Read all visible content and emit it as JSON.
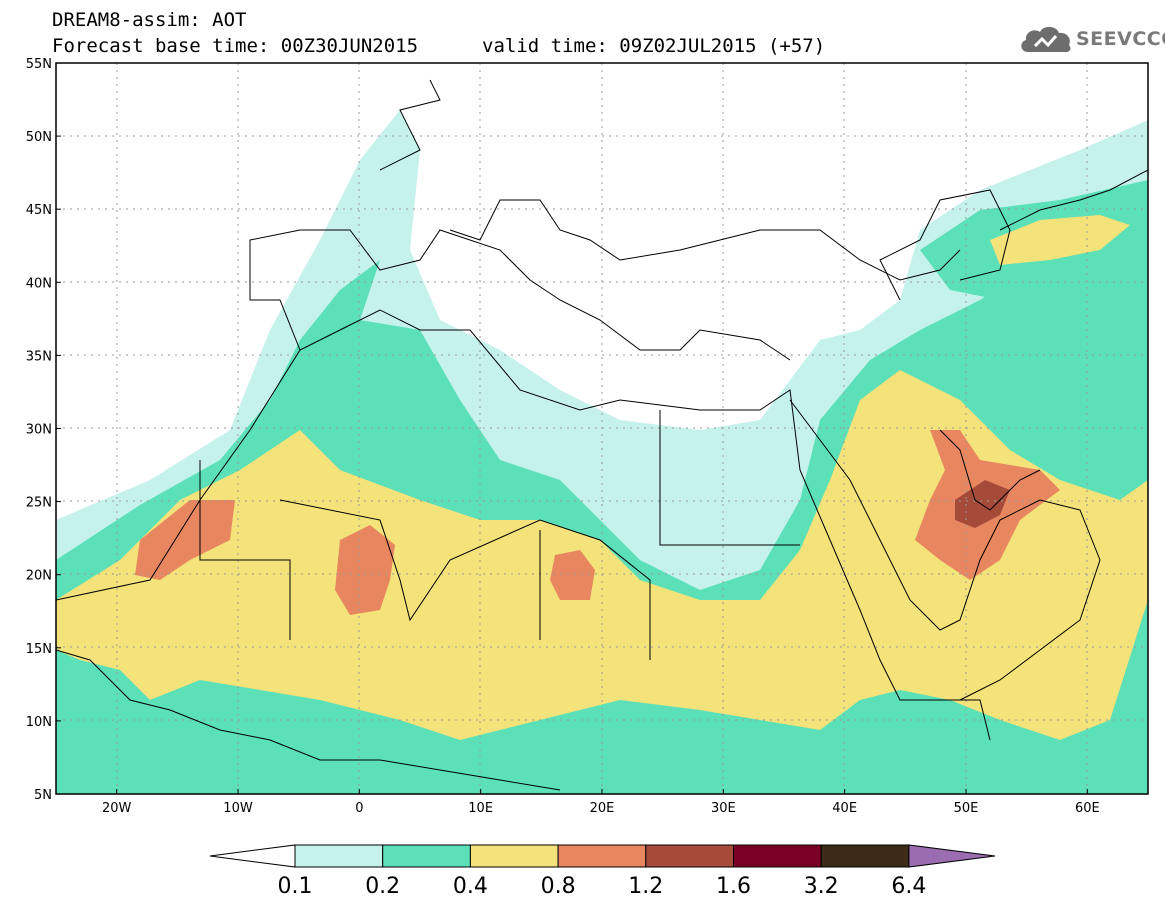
{
  "header": {
    "title_line1": "DREAM8-assim: AOT",
    "base_time": "Forecast base time: 00Z30JUN2015",
    "valid_time": "valid time: 09Z02JUL2015 (+57)"
  },
  "logo": {
    "text": "SEEVCCC",
    "icon": "cloud-logo-icon"
  },
  "map": {
    "lon_range": [
      -25,
      65
    ],
    "lat_range": [
      5,
      55
    ],
    "lat_ticks": [
      "5N",
      "10N",
      "15N",
      "20N",
      "25N",
      "30N",
      "35N",
      "40N",
      "45N",
      "50N",
      "55N"
    ],
    "lon_ticks": [
      "20W",
      "10W",
      "0",
      "10E",
      "20E",
      "30E",
      "40E",
      "50E",
      "60E"
    ]
  },
  "colorbar": {
    "labels": [
      "0.1",
      "0.2",
      "0.4",
      "0.8",
      "1.2",
      "1.6",
      "3.2",
      "6.4"
    ],
    "colors": [
      "#c6f2ec",
      "#5ce0b8",
      "#f4e27a",
      "#e8875f",
      "#a64a3a",
      "#7a0024",
      "#3d2a17"
    ],
    "under_color": "#ffffff",
    "over_color": "#9a6cb0"
  }
}
